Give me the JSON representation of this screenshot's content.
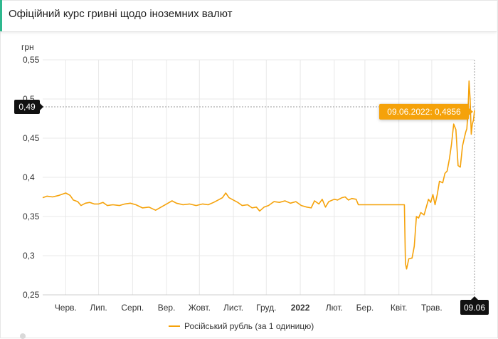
{
  "header": {
    "title": "Офіційний курс гривні щодо іноземних валют"
  },
  "colors": {
    "series": "#f5a20a",
    "accent": "#2eb88e",
    "badge_dark": "#111111",
    "tooltip_bg": "#f5a20a"
  },
  "chart_data": {
    "type": "line",
    "ylabel": "грн",
    "ylim": [
      0.25,
      0.55
    ],
    "y_ticks": [
      "0,25",
      "0,3",
      "0,35",
      "0,4",
      "0,45",
      "0,5",
      "0,55"
    ],
    "y_tick_values": [
      0.25,
      0.3,
      0.35,
      0.4,
      0.45,
      0.5,
      0.55
    ],
    "x_ticks": [
      "Черв.",
      "Лип.",
      "Серп.",
      "Вер.",
      "Жовт.",
      "Лист.",
      "Груд.",
      "2022",
      "Лют.",
      "Бер.",
      "Квіт.",
      "Трав."
    ],
    "x_tick_bold": [
      false,
      false,
      false,
      false,
      false,
      false,
      false,
      true,
      false,
      false,
      false,
      false
    ],
    "x_range": [
      "2021-05-11",
      "2022-06-09"
    ],
    "x_tick_dates": [
      "2021-06-01",
      "2021-07-01",
      "2021-08-01",
      "2021-09-01",
      "2021-10-01",
      "2021-11-01",
      "2021-12-01",
      "2022-01-01",
      "2022-02-01",
      "2022-03-01",
      "2022-04-01",
      "2022-05-01"
    ],
    "crosshair": {
      "y_label": "0,49",
      "y_value": 0.49,
      "x_label": "09.06",
      "x_date": "2022-06-09",
      "tooltip": "09.06.2022: 0,4856"
    },
    "grid": true,
    "legend_position": "bottom",
    "series": [
      {
        "name": "Російський рубль (за 1 одиницю)",
        "points": [
          [
            "2021-05-11",
            0.374
          ],
          [
            "2021-05-15",
            0.376
          ],
          [
            "2021-05-20",
            0.375
          ],
          [
            "2021-05-26",
            0.377
          ],
          [
            "2021-06-01",
            0.38
          ],
          [
            "2021-06-05",
            0.377
          ],
          [
            "2021-06-08",
            0.371
          ],
          [
            "2021-06-12",
            0.369
          ],
          [
            "2021-06-15",
            0.364
          ],
          [
            "2021-06-19",
            0.367
          ],
          [
            "2021-06-23",
            0.368
          ],
          [
            "2021-06-27",
            0.366
          ],
          [
            "2021-07-01",
            0.366
          ],
          [
            "2021-07-05",
            0.368
          ],
          [
            "2021-07-09",
            0.364
          ],
          [
            "2021-07-14",
            0.365
          ],
          [
            "2021-07-20",
            0.364
          ],
          [
            "2021-07-25",
            0.366
          ],
          [
            "2021-07-30",
            0.367
          ],
          [
            "2021-08-04",
            0.365
          ],
          [
            "2021-08-10",
            0.361
          ],
          [
            "2021-08-16",
            0.362
          ],
          [
            "2021-08-22",
            0.358
          ],
          [
            "2021-08-27",
            0.362
          ],
          [
            "2021-09-01",
            0.366
          ],
          [
            "2021-09-06",
            0.37
          ],
          [
            "2021-09-10",
            0.367
          ],
          [
            "2021-09-16",
            0.365
          ],
          [
            "2021-09-22",
            0.366
          ],
          [
            "2021-09-28",
            0.364
          ],
          [
            "2021-10-04",
            0.366
          ],
          [
            "2021-10-09",
            0.365
          ],
          [
            "2021-10-14",
            0.368
          ],
          [
            "2021-10-18",
            0.371
          ],
          [
            "2021-10-22",
            0.374
          ],
          [
            "2021-10-25",
            0.38
          ],
          [
            "2021-10-28",
            0.374
          ],
          [
            "2021-11-01",
            0.371
          ],
          [
            "2021-11-05",
            0.368
          ],
          [
            "2021-11-09",
            0.364
          ],
          [
            "2021-11-14",
            0.365
          ],
          [
            "2021-11-18",
            0.361
          ],
          [
            "2021-11-22",
            0.362
          ],
          [
            "2021-11-25",
            0.357
          ],
          [
            "2021-11-29",
            0.362
          ],
          [
            "2021-12-03",
            0.364
          ],
          [
            "2021-12-08",
            0.369
          ],
          [
            "2021-12-13",
            0.368
          ],
          [
            "2021-12-18",
            0.37
          ],
          [
            "2021-12-23",
            0.367
          ],
          [
            "2021-12-28",
            0.369
          ],
          [
            "2022-01-02",
            0.364
          ],
          [
            "2022-01-07",
            0.362
          ],
          [
            "2022-01-11",
            0.361
          ],
          [
            "2022-01-14",
            0.37
          ],
          [
            "2022-01-18",
            0.366
          ],
          [
            "2022-01-21",
            0.372
          ],
          [
            "2022-01-24",
            0.362
          ],
          [
            "2022-01-27",
            0.369
          ],
          [
            "2022-02-01",
            0.372
          ],
          [
            "2022-02-04",
            0.371
          ],
          [
            "2022-02-08",
            0.374
          ],
          [
            "2022-02-11",
            0.375
          ],
          [
            "2022-02-14",
            0.371
          ],
          [
            "2022-02-17",
            0.373
          ],
          [
            "2022-02-21",
            0.372
          ],
          [
            "2022-02-23",
            0.365
          ],
          [
            "2022-03-01",
            0.365
          ],
          [
            "2022-03-10",
            0.365
          ],
          [
            "2022-03-20",
            0.365
          ],
          [
            "2022-03-30",
            0.365
          ],
          [
            "2022-04-06",
            0.365
          ],
          [
            "2022-04-07",
            0.29
          ],
          [
            "2022-04-08",
            0.283
          ],
          [
            "2022-04-10",
            0.296
          ],
          [
            "2022-04-13",
            0.297
          ],
          [
            "2022-04-15",
            0.312
          ],
          [
            "2022-04-17",
            0.35
          ],
          [
            "2022-04-19",
            0.348
          ],
          [
            "2022-04-21",
            0.355
          ],
          [
            "2022-04-24",
            0.352
          ],
          [
            "2022-04-26",
            0.362
          ],
          [
            "2022-04-28",
            0.372
          ],
          [
            "2022-04-30",
            0.368
          ],
          [
            "2022-05-02",
            0.378
          ],
          [
            "2022-05-04",
            0.365
          ],
          [
            "2022-05-06",
            0.378
          ],
          [
            "2022-05-08",
            0.395
          ],
          [
            "2022-05-11",
            0.393
          ],
          [
            "2022-05-13",
            0.405
          ],
          [
            "2022-05-15",
            0.408
          ],
          [
            "2022-05-17",
            0.423
          ],
          [
            "2022-05-19",
            0.442
          ],
          [
            "2022-05-21",
            0.468
          ],
          [
            "2022-05-23",
            0.461
          ],
          [
            "2022-05-25",
            0.415
          ],
          [
            "2022-05-27",
            0.413
          ],
          [
            "2022-05-29",
            0.44
          ],
          [
            "2022-05-31",
            0.452
          ],
          [
            "2022-06-01",
            0.458
          ],
          [
            "2022-06-02",
            0.462
          ],
          [
            "2022-06-03",
            0.483
          ],
          [
            "2022-06-04",
            0.523
          ],
          [
            "2022-06-05",
            0.5
          ],
          [
            "2022-06-06",
            0.455
          ],
          [
            "2022-06-07",
            0.468
          ],
          [
            "2022-06-08",
            0.473
          ],
          [
            "2022-06-09",
            0.4856
          ]
        ]
      }
    ]
  }
}
